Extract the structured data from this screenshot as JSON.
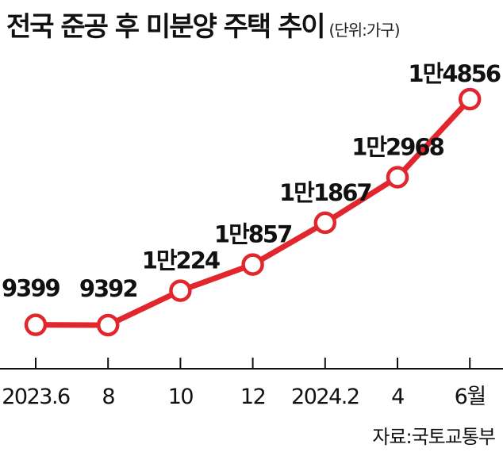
{
  "title": "전국 준공 후 미분양 주택 추이",
  "unit": "(단위:가구)",
  "source": "자료:국토교통부",
  "colors": {
    "line": "#e2262d",
    "marker_fill": "#ffffff",
    "axis": "#111111"
  },
  "chart_data": {
    "type": "line",
    "title": "전국 준공 후 미분양 주택 추이",
    "unit": "(단위:가구)",
    "x_tick_labels": [
      "2023.6",
      "8",
      "10",
      "12",
      "2024.2",
      "4",
      "6월"
    ],
    "points": [
      {
        "x": "2023.6",
        "y": 9399,
        "label": "9399"
      },
      {
        "x": "2023.8",
        "y": 9392,
        "label": "9392"
      },
      {
        "x": "2023.10",
        "y": 10224,
        "label": "1만224"
      },
      {
        "x": "2023.12",
        "y": 10857,
        "label": "1만857"
      },
      {
        "x": "2024.2",
        "y": 11867,
        "label": "1만1867"
      },
      {
        "x": "2024.4",
        "y": 12968,
        "label": "1만2968"
      },
      {
        "x": "2024.6",
        "y": 14856,
        "label": "1만4856"
      }
    ],
    "ylim": [
      8000,
      15500
    ],
    "grid": false,
    "legend": "none"
  }
}
